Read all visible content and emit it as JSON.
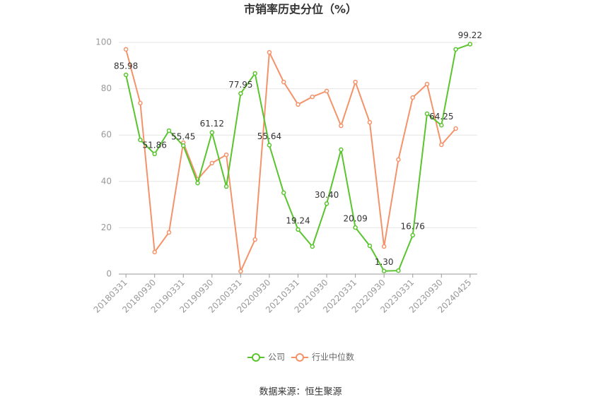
{
  "chart_data": {
    "type": "line",
    "title": "市销率历史分位（%）",
    "source": "数据来源：恒生聚源",
    "categories": [
      "20180331",
      null,
      "20180930",
      null,
      "20190331",
      null,
      "20190930",
      null,
      "20200331",
      null,
      "20200930",
      null,
      "20210331",
      null,
      "20210930",
      null,
      "20220331",
      null,
      "20220930",
      null,
      "20230331",
      null,
      "20230930",
      null,
      "20240425"
    ],
    "series": [
      {
        "name": "公司",
        "color": "#5ac42e",
        "values": [
          85.98,
          57.9,
          51.86,
          61.9,
          55.45,
          39.3,
          61.12,
          37.8,
          77.95,
          86.6,
          55.64,
          35.1,
          19.24,
          11.9,
          30.4,
          53.7,
          20.09,
          12.2,
          1.3,
          1.5,
          16.76,
          69.2,
          64.25,
          97.0,
          99.22
        ],
        "value_labels": [
          "85.98",
          null,
          "51.86",
          null,
          "55.45",
          null,
          "61.12",
          null,
          "77.95",
          null,
          "55.64",
          null,
          "19.24",
          null,
          "30.40",
          null,
          "20.09",
          null,
          "1.30",
          null,
          "16.76",
          null,
          "64.25",
          null,
          "99.22"
        ]
      },
      {
        "name": "行业中位数",
        "color": "#f4936a",
        "values": [
          97.0,
          73.8,
          9.5,
          18.0,
          56.7,
          40.9,
          47.9,
          51.5,
          1.2,
          14.9,
          95.7,
          82.9,
          73.2,
          76.5,
          79.0,
          64.0,
          82.9,
          65.5,
          11.9,
          49.4,
          76.2,
          82.0,
          55.8,
          62.8,
          null
        ]
      }
    ],
    "ylim": [
      0,
      100
    ],
    "yticks": [
      0,
      20,
      40,
      60,
      80,
      100
    ],
    "grid": true,
    "legend": "bottom"
  }
}
